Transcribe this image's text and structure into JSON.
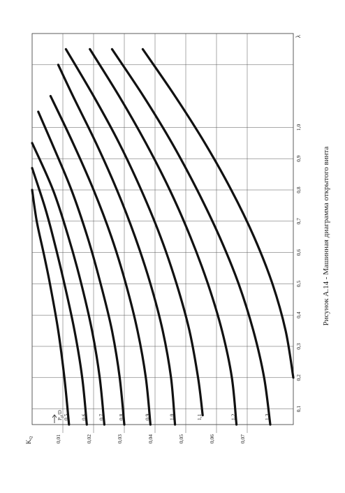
{
  "caption": "Рисунок А.14 - Машинная диаграмма открытого винта",
  "chart_data": {
    "type": "line",
    "xlabel": "λ",
    "ylabel": "K",
    "ylabel_sub": "Q",
    "xlim": [
      0.05,
      1.3
    ],
    "ylim": [
      0,
      0.085
    ],
    "x_tick_labels": [
      "0,1",
      "0,2",
      "0,3",
      "0,4",
      "0,5",
      "0,6",
      "0,7",
      "0,8",
      "0,9",
      "1,0"
    ],
    "x_tick_values": [
      0.1,
      0.2,
      0.3,
      0.4,
      0.5,
      0.6,
      0.7,
      0.8,
      0.9,
      1.0
    ],
    "y_tick_labels": [
      "0,01",
      "0,02",
      "0,03",
      "0,04",
      "0,05",
      "0,06",
      "0,07"
    ],
    "y_tick_values": [
      0.01,
      0.02,
      0.03,
      0.04,
      0.05,
      0.06,
      0.07
    ],
    "grid": true,
    "param_label": "P",
    "param_label_sub": "p",
    "param_label_tail": "/D",
    "series": [
      {
        "name": "0,5",
        "x": [
          0.05,
          0.2,
          0.35,
          0.5,
          0.6,
          0.7,
          0.8
        ],
        "y": [
          0.012,
          0.0105,
          0.0085,
          0.0058,
          0.0037,
          0.0015,
          0.0
        ]
      },
      {
        "name": "0,6",
        "x": [
          0.05,
          0.2,
          0.35,
          0.5,
          0.65,
          0.75,
          0.87
        ],
        "y": [
          0.0178,
          0.0163,
          0.0138,
          0.0105,
          0.0068,
          0.004,
          0.0
        ]
      },
      {
        "name": "0,7",
        "x": [
          0.05,
          0.2,
          0.35,
          0.5,
          0.65,
          0.8,
          0.95
        ],
        "y": [
          0.0235,
          0.022,
          0.0195,
          0.016,
          0.0118,
          0.0068,
          0.0
        ]
      },
      {
        "name": "0,8",
        "x": [
          0.05,
          0.2,
          0.35,
          0.5,
          0.65,
          0.8,
          0.95,
          1.05
        ],
        "y": [
          0.03,
          0.0285,
          0.026,
          0.0223,
          0.018,
          0.0128,
          0.0064,
          0.002
        ]
      },
      {
        "name": "0,9",
        "x": [
          0.05,
          0.2,
          0.35,
          0.5,
          0.65,
          0.8,
          0.95,
          1.1
        ],
        "y": [
          0.0385,
          0.037,
          0.0343,
          0.0305,
          0.0258,
          0.02,
          0.0133,
          0.006
        ]
      },
      {
        "name": "1,0",
        "x": [
          0.05,
          0.2,
          0.35,
          0.5,
          0.65,
          0.8,
          0.95,
          1.1,
          1.2
        ],
        "y": [
          0.0465,
          0.0452,
          0.0425,
          0.0385,
          0.0335,
          0.0276,
          0.0208,
          0.0133,
          0.0085
        ]
      },
      {
        "name": "1,1",
        "x": [
          0.08,
          0.2,
          0.35,
          0.5,
          0.65,
          0.8,
          0.95,
          1.1,
          1.25
        ],
        "y": [
          0.0555,
          0.054,
          0.0512,
          0.047,
          0.0418,
          0.0355,
          0.0283,
          0.02,
          0.011
        ]
      },
      {
        "name": "1,2",
        "x": [
          0.05,
          0.2,
          0.35,
          0.5,
          0.65,
          0.8,
          0.95,
          1.1,
          1.25
        ],
        "y": [
          0.0665,
          0.065,
          0.0618,
          0.0572,
          0.0515,
          0.0448,
          0.037,
          0.0283,
          0.0188
        ]
      },
      {
        "name": "1,3",
        "x": [
          0.05,
          0.2,
          0.35,
          0.5,
          0.65,
          0.8,
          0.95,
          1.1,
          1.25
        ],
        "y": [
          0.0775,
          0.0755,
          0.072,
          0.0672,
          0.061,
          0.0537,
          0.0455,
          0.0362,
          0.026
        ]
      },
      {
        "name": "",
        "x": [
          0.2,
          0.35,
          0.5,
          0.65,
          0.8,
          0.95,
          1.1,
          1.25
        ],
        "y": [
          0.085,
          0.0825,
          0.0782,
          0.0722,
          0.0648,
          0.0562,
          0.0465,
          0.036
        ]
      }
    ]
  }
}
